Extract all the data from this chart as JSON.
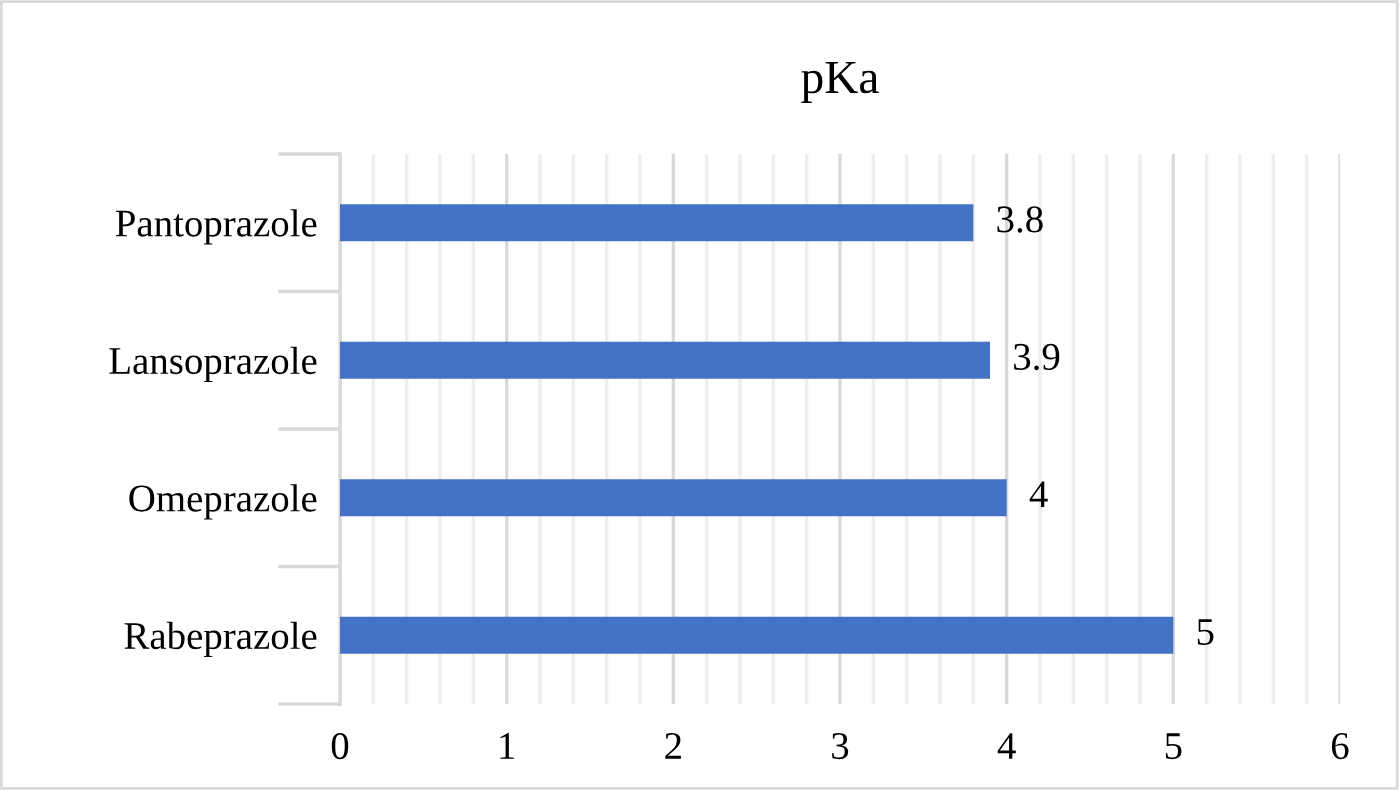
{
  "chart_data": {
    "type": "bar",
    "orientation": "horizontal",
    "title": "pKa",
    "categories": [
      "Pantoprazole",
      "Lansoprazole",
      "Omeprazole",
      "Rabeprazole"
    ],
    "values": [
      3.8,
      3.9,
      4,
      5
    ],
    "color": "#4472c4",
    "data_labels": true,
    "xlim": [
      0,
      6
    ],
    "xticks": [
      0,
      {
        "value": 0.2,
        "label": null
      },
      {
        "value": 0.4,
        "label": null
      },
      {
        "value": 0.6,
        "label": null
      },
      {
        "value": 0.8,
        "label": null
      },
      1,
      {
        "value": 1.2,
        "label": null
      },
      {
        "value": 1.4,
        "label": null
      },
      {
        "value": 1.6,
        "label": null
      },
      {
        "value": 1.8,
        "label": null
      },
      2,
      {
        "value": 2.2,
        "label": null
      },
      {
        "value": 2.4,
        "label": null
      },
      {
        "value": 2.6,
        "label": null
      },
      {
        "value": 2.8,
        "label": null
      },
      3,
      {
        "value": 3.2,
        "label": null
      },
      {
        "value": 3.4,
        "label": null
      },
      {
        "value": 3.6,
        "label": null
      },
      {
        "value": 3.8,
        "label": null
      },
      4,
      {
        "value": 4.2,
        "label": null
      },
      {
        "value": 4.4,
        "label": null
      },
      {
        "value": 4.6,
        "label": null
      },
      {
        "value": 4.8,
        "label": null
      },
      5,
      {
        "value": 5.2,
        "label": null
      },
      {
        "value": 5.4,
        "label": null
      },
      {
        "value": 5.6,
        "label": null
      },
      {
        "value": 5.8,
        "label": null
      },
      6
    ],
    "grid": "x"
  }
}
